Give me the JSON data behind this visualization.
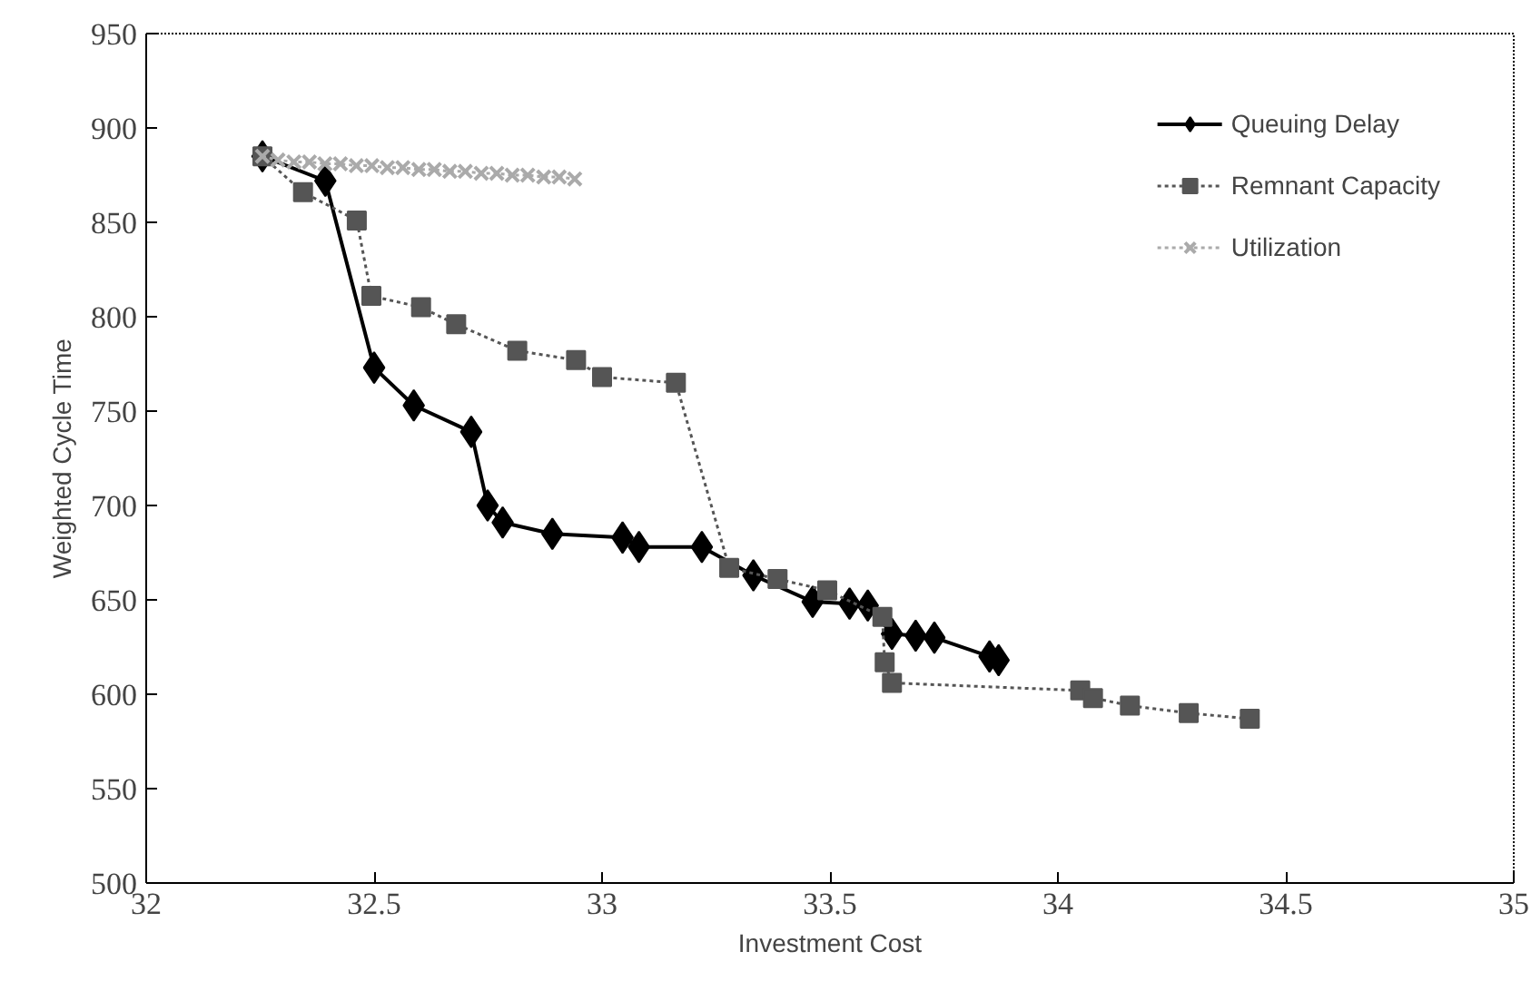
{
  "chart_data": {
    "type": "line",
    "xlabel": "Investment Cost",
    "ylabel": "Weighted Cycle Time",
    "xlim": [
      32,
      35
    ],
    "xticks": [
      32,
      32.5,
      33,
      33.5,
      34,
      34.5,
      35
    ],
    "ylim": [
      500,
      950
    ],
    "yticks": [
      500,
      550,
      600,
      650,
      700,
      750,
      800,
      850,
      900,
      950
    ],
    "grid": false,
    "legend": "top right",
    "series": [
      {
        "name": "Queuing Delay",
        "color": "#000000",
        "marker": "diamond",
        "line_style": "solid",
        "x": [
          32.255,
          32.393,
          32.5,
          32.587,
          32.713,
          32.749,
          32.782,
          32.891,
          33.045,
          33.081,
          33.219,
          33.332,
          33.462,
          33.543,
          33.583,
          33.636,
          33.688,
          33.729,
          33.85,
          33.87
        ],
        "values": [
          885,
          872,
          773,
          753,
          739,
          700,
          691,
          685,
          683,
          678,
          678,
          663,
          649,
          648,
          647,
          632,
          631,
          630,
          620,
          618
        ]
      },
      {
        "name": "Remnant Capacity",
        "color": "#555555",
        "marker": "square",
        "line_style": "dotted",
        "x": [
          32.255,
          32.344,
          32.462,
          32.494,
          32.603,
          32.68,
          32.814,
          32.943,
          33.0,
          33.162,
          33.279,
          33.385,
          33.494,
          33.615,
          33.62,
          33.636,
          34.049,
          34.077,
          34.158,
          34.287,
          34.421
        ],
        "values": [
          885,
          866,
          851,
          811,
          805,
          796,
          782,
          777,
          768,
          765,
          667,
          661,
          655,
          641,
          617,
          606,
          602,
          598,
          594,
          590,
          587
        ]
      },
      {
        "name": "Utilization",
        "color": "#aaaaaa",
        "marker": "cross",
        "line_style": "dotted",
        "x": [
          32.255,
          32.289,
          32.324,
          32.358,
          32.392,
          32.426,
          32.461,
          32.495,
          32.529,
          32.563,
          32.598,
          32.632,
          32.666,
          32.7,
          32.735,
          32.769,
          32.803,
          32.837,
          32.872,
          32.906,
          32.94
        ],
        "values": [
          885,
          883,
          882,
          882,
          881,
          881,
          880,
          880,
          879,
          879,
          878,
          878,
          877,
          877,
          876,
          876,
          875,
          875,
          874,
          874,
          873
        ]
      }
    ]
  }
}
